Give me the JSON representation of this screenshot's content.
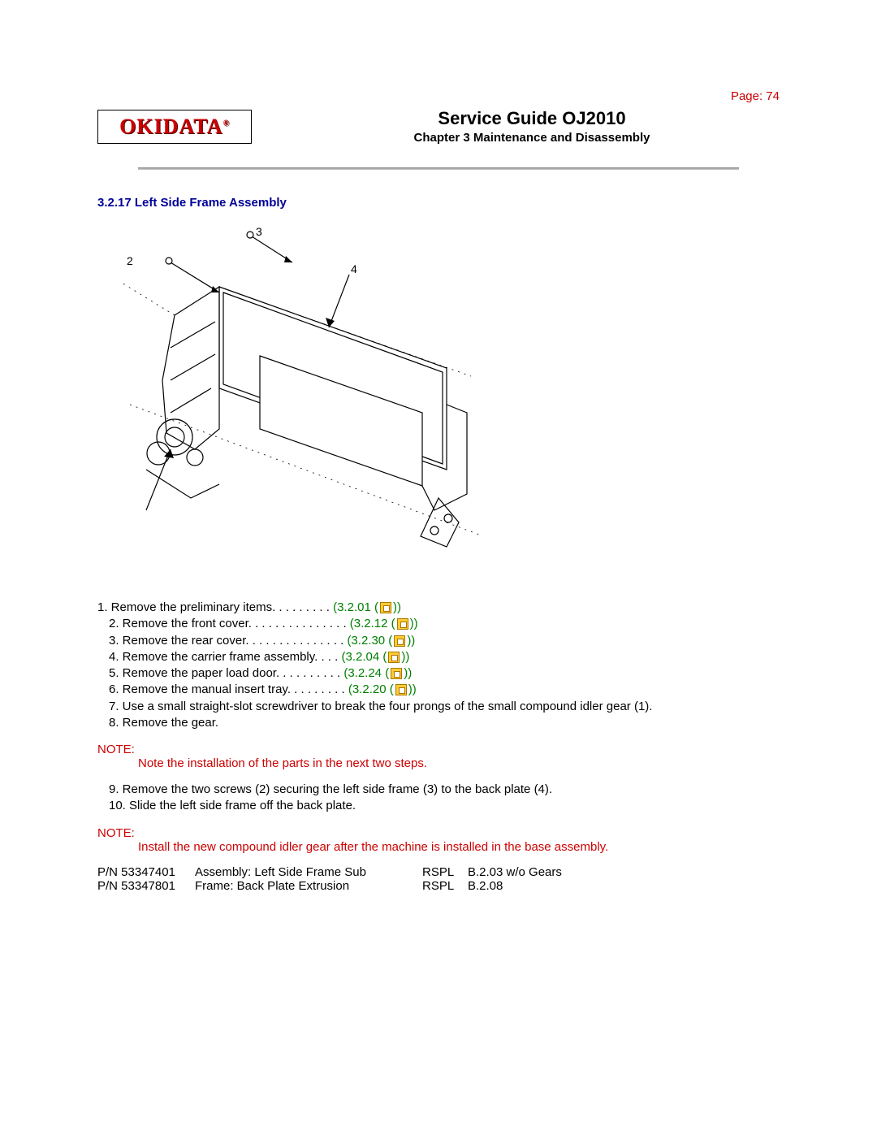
{
  "page_label": "Page: 74",
  "logo_text": "OKIDATA",
  "logo_reg": "®",
  "title": "Service Guide OJ2010",
  "subtitle": "Chapter 3 Maintenance and Disassembly",
  "section_heading": "3.2.17 Left Side Frame Assembly",
  "colors": {
    "red": "#cc0000",
    "blue": "#000099",
    "green": "#008000",
    "icon_bg": "#ffcc33",
    "text": "#000000"
  },
  "steps_with_ref": [
    {
      "indent": 1,
      "text": "1. Remove the preliminary items. . . . . . . . . ",
      "ref": "3.2.01"
    },
    {
      "indent": 2,
      "text": "2. Remove the front cover. . . . . . . . . . . . . . . ",
      "ref": "3.2.12"
    },
    {
      "indent": 2,
      "text": "3. Remove the rear cover. . . . . . . . . . . . . . . ",
      "ref": "3.2.30"
    },
    {
      "indent": 2,
      "text": "4. Remove the carrier frame assembly. . . . ",
      "ref": "3.2.04"
    },
    {
      "indent": 2,
      "text": "5. Remove the paper load door. . . . . . . . . . ",
      "ref": "3.2.24"
    },
    {
      "indent": 2,
      "text": "6. Remove the manual insert tray. . . . . . . . . ",
      "ref": "3.2.20"
    }
  ],
  "steps_plain_1": [
    "7. Use a small straight-slot screwdriver to break the four prongs of the small compound idler gear (1).",
    "8. Remove the gear."
  ],
  "note1_label": "NOTE:",
  "note1_body": "Note the installation of the parts in the next two steps.",
  "steps_plain_2": [
    "9. Remove the two screws (2) securing the left side frame (3) to the back plate (4).",
    "10. Slide the left side frame off the back plate."
  ],
  "note2_label": "NOTE:",
  "note2_body": "Install the new compound idler gear after the machine is installed in the base assembly.",
  "parts": [
    {
      "pn": "P/N 53347401",
      "desc": "Assembly: Left Side Frame Sub",
      "rspl": "RSPL",
      "ref": "B.2.03 w/o Gears"
    },
    {
      "pn": "P/N 53347801",
      "desc": "Frame: Back Plate Extrusion",
      "rspl": "RSPL",
      "ref": "B.2.08"
    }
  ],
  "diagram": {
    "callouts": [
      "2",
      "3",
      "4"
    ],
    "desc": "Exploded line drawing of left side frame assembly with screws (2), left side frame (3), back plate (4)."
  }
}
